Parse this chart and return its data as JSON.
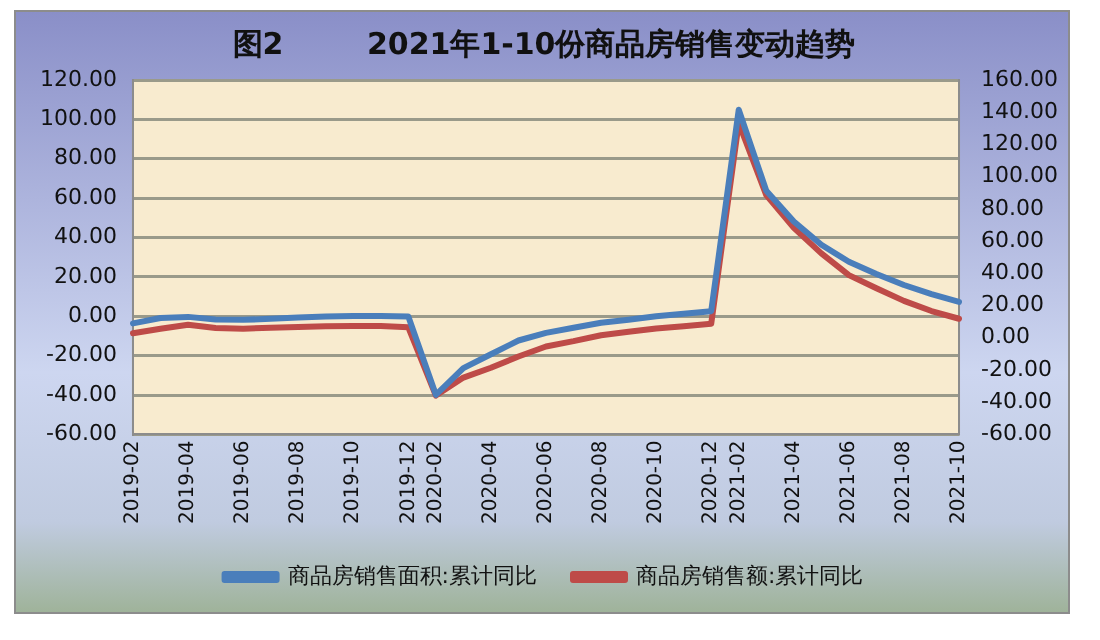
{
  "chart_data": {
    "type": "line",
    "title": "图2        2021年1-10份商品房销售变动趋势",
    "categories": [
      "2019-02",
      null,
      "2019-04",
      null,
      "2019-06",
      null,
      "2019-08",
      null,
      "2019-10",
      null,
      "2019-12",
      "2020-02",
      null,
      "2020-04",
      null,
      "2020-06",
      null,
      "2020-08",
      null,
      "2020-10",
      null,
      "2020-12",
      "2021-02",
      null,
      "2021-04",
      null,
      "2021-06",
      null,
      "2021-08",
      null,
      "2021-10"
    ],
    "series": [
      {
        "name": "商品房销售面积:累计同比",
        "color": "#4a7ebb",
        "values": [
          -3.6,
          -0.9,
          -0.3,
          -1.6,
          -1.8,
          -1.3,
          -0.6,
          -0.1,
          0.1,
          0.2,
          -0.1,
          -39.9,
          -26.3,
          -19.3,
          -12.3,
          -8.4,
          -5.8,
          -3.3,
          -1.8,
          0.0,
          1.3,
          2.6,
          104.9,
          63.8,
          48.1,
          36.3,
          27.7,
          21.5,
          15.9,
          11.3,
          7.3
        ]
      },
      {
        "name": "商品房销售额:累计同比",
        "color": "#be4b48",
        "axis": "y2",
        "values": [
          2.8,
          5.6,
          8.1,
          6.1,
          5.6,
          6.2,
          6.7,
          7.1,
          7.3,
          7.3,
          6.5,
          -35.9,
          -24.7,
          -18.6,
          -11.6,
          -5.4,
          -2.1,
          1.6,
          3.7,
          5.8,
          7.2,
          8.7,
          133.4,
          88.5,
          68.2,
          52.4,
          38.9,
          30.7,
          22.9,
          16.6,
          11.8
        ]
      }
    ],
    "ylim": [
      -60,
      120
    ],
    "yticks": [
      {
        "value": -60,
        "label": "-60.00"
      },
      {
        "value": -40,
        "label": "-40.00"
      },
      {
        "value": -20,
        "label": "-20.00"
      },
      {
        "value": 0,
        "label": "0.00"
      },
      {
        "value": 20,
        "label": "20.00"
      },
      {
        "value": 40,
        "label": "40.00"
      },
      {
        "value": 60,
        "label": "60.00"
      },
      {
        "value": 80,
        "label": "80.00"
      },
      {
        "value": 100,
        "label": "100.00"
      },
      {
        "value": 120,
        "label": "120.00"
      }
    ],
    "y2lim": [
      -60,
      160
    ],
    "y2ticks": [
      {
        "value": -60,
        "label": "-60.00"
      },
      {
        "value": -40,
        "label": "-40.00"
      },
      {
        "value": -20,
        "label": "-20.00"
      },
      {
        "value": 0,
        "label": "0.00"
      },
      {
        "value": 20,
        "label": "20.00"
      },
      {
        "value": 40,
        "label": "40.00"
      },
      {
        "value": 60,
        "label": "60.00"
      },
      {
        "value": 80,
        "label": "80.00"
      },
      {
        "value": 100,
        "label": "100.00"
      },
      {
        "value": 120,
        "label": "120.00"
      },
      {
        "value": 140,
        "label": "140.00"
      },
      {
        "value": 160,
        "label": "160.00"
      }
    ],
    "grid": "y",
    "legend": "bottom",
    "marker": "none",
    "line_style": "solid"
  }
}
